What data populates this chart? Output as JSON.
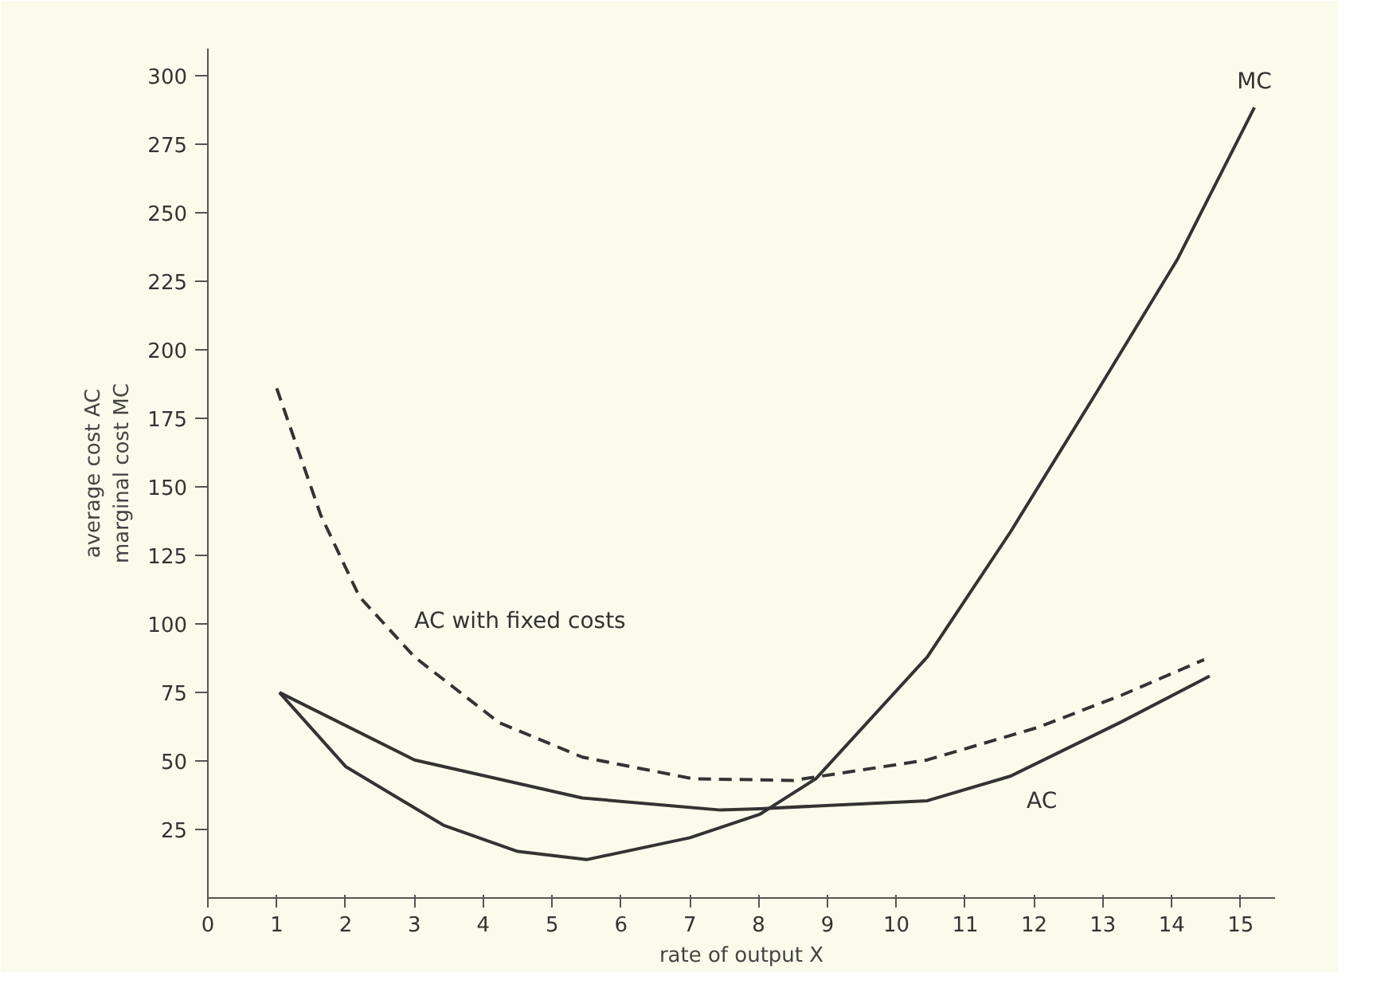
{
  "chart_data": {
    "type": "line",
    "xlabel": "rate of output X",
    "ylabel": "average cost AC\nmarginal cost MC",
    "xlim": [
      0,
      15.5
    ],
    "ylim": [
      0,
      310
    ],
    "xticks": [
      0,
      1,
      2,
      3,
      4,
      5,
      6,
      7,
      8,
      9,
      10,
      11,
      12,
      13,
      14,
      15
    ],
    "yticks": [
      25,
      50,
      75,
      100,
      125,
      150,
      175,
      200,
      225,
      250,
      275,
      300
    ],
    "grid": false,
    "marker": "none",
    "series": [
      {
        "name": "AC with fixed costs",
        "color": "#333333",
        "line_style": "dashed",
        "x": [
          1,
          1.64,
          2.2,
          3.0,
          4.23,
          5.44,
          7.05,
          8.03,
          8.5,
          10.45,
          12.06,
          13.27,
          14.47
        ],
        "values": [
          186,
          139.7,
          110,
          88,
          64,
          51.4,
          43.5,
          43.1,
          42.9,
          50.4,
          62.3,
          74,
          87
        ]
      },
      {
        "name": "AC",
        "color": "#333333",
        "line_style": "solid",
        "x": [
          1.04,
          3.0,
          5.44,
          7.45,
          8.02,
          10.45,
          11.66,
          13.27,
          14.55
        ],
        "values": [
          75,
          50.4,
          36.5,
          32.1,
          32.6,
          35.5,
          44.5,
          64.3,
          81
        ]
      },
      {
        "name": "MC",
        "color": "#333333",
        "line_style": "solid",
        "x": [
          1.04,
          2,
          3.42,
          4.5,
          5.5,
          7,
          8.02,
          8.83,
          10.45,
          11.66,
          12.87,
          14.08,
          15.2
        ],
        "values": [
          75,
          48,
          26.6,
          17,
          14,
          22,
          30.6,
          43.5,
          88,
          133.7,
          183,
          233,
          288.5
        ]
      }
    ]
  }
}
